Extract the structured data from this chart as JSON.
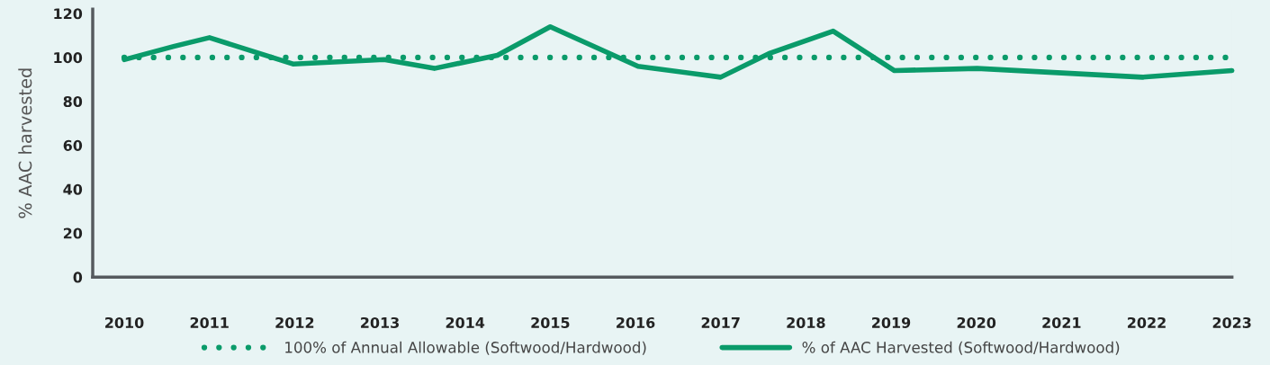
{
  "chart_data": {
    "type": "line",
    "ylabel": "% AAC harvested",
    "xlim": [
      2009.63,
      2023
    ],
    "ylim": [
      0,
      122
    ],
    "xticks": [
      2010,
      2011,
      2012,
      2013,
      2014,
      2015,
      2016,
      2017,
      2018,
      2019,
      2020,
      2021,
      2022,
      2023
    ],
    "yticks": [
      0,
      20,
      40,
      60,
      80,
      100,
      120
    ],
    "grid": false,
    "legend": "bottom",
    "marker": "none",
    "series": [
      {
        "name": "100% of Annual Allowable (Softwood/Hardwood)",
        "color": "#0a9b6a",
        "line_style": "dotted",
        "x": [
          2010,
          2023
        ],
        "values": [
          100,
          100
        ]
      },
      {
        "name": "% of AAC Harvested (Softwood/Hardwood)",
        "color": "#0a9b6a",
        "line_style": "solid",
        "x": [
          2010,
          2010.58,
          2011,
          2011.98,
          2013.05,
          2013.64,
          2014.38,
          2015,
          2016.03,
          2017,
          2017.58,
          2018.32,
          2019.04,
          2020.01,
          2021.95,
          2023
        ],
        "values": [
          99,
          105,
          109,
          97,
          99,
          95,
          101,
          114,
          96,
          91,
          102,
          112,
          94,
          95,
          91,
          94
        ]
      }
    ]
  }
}
